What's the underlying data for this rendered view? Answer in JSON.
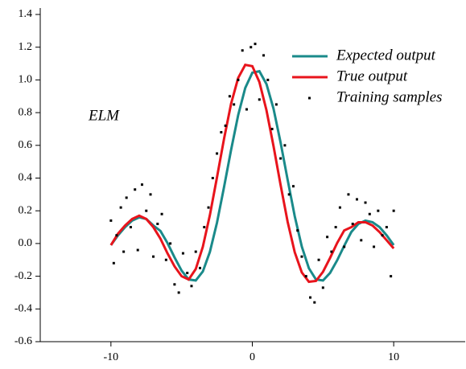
{
  "chart_data": {
    "type": "line",
    "annotation": "ELM",
    "annotation_color": "#1a8a8a",
    "x": [
      -10,
      -9.5,
      -9,
      -8.5,
      -8,
      -7.5,
      -7,
      -6.5,
      -6,
      -5.5,
      -5,
      -4.5,
      -4,
      -3.5,
      -3,
      -2.5,
      -2,
      -1.5,
      -1,
      -0.5,
      0,
      0.5,
      1,
      1.5,
      2,
      2.5,
      3,
      3.5,
      4,
      4.5,
      5,
      5.5,
      6,
      6.5,
      7,
      7.5,
      8,
      8.5,
      9,
      9.5,
      10
    ],
    "series": [
      {
        "name": "Expected output",
        "type": "line",
        "color": "#1a8a8a",
        "values": [
          -0.01,
          0.05,
          0.1,
          0.14,
          0.16,
          0.15,
          0.11,
          0.077,
          0.003,
          -0.085,
          -0.166,
          -0.22,
          -0.226,
          -0.171,
          -0.051,
          0.127,
          0.345,
          0.573,
          0.785,
          0.951,
          1.044,
          1.053,
          0.975,
          0.824,
          0.617,
          0.389,
          0.167,
          -0.019,
          -0.151,
          -0.22,
          -0.226,
          -0.18,
          -0.103,
          -0.014,
          0.07,
          0.12,
          0.14,
          0.13,
          0.1,
          0.05,
          -0.01
        ]
      },
      {
        "name": "True output",
        "type": "line",
        "color": "#e8141c",
        "values": [
          -0.01,
          0.06,
          0.11,
          0.15,
          0.17,
          0.15,
          0.1,
          0.03,
          -0.06,
          -0.14,
          -0.2,
          -0.22,
          -0.156,
          -0.02,
          0.174,
          0.404,
          0.64,
          0.855,
          1.012,
          1.092,
          1.084,
          0.987,
          0.815,
          0.595,
          0.358,
          0.132,
          -0.053,
          -0.177,
          -0.234,
          -0.229,
          -0.173,
          -0.088,
          0.003,
          0.08,
          0.1,
          0.13,
          0.13,
          0.11,
          0.07,
          0.02,
          -0.03
        ]
      },
      {
        "name": "Training samples",
        "type": "scatter",
        "color": "#000000",
        "x": [
          -10,
          -9.8,
          -9.6,
          -9.3,
          -9.1,
          -8.9,
          -8.6,
          -8.3,
          -8.1,
          -7.8,
          -7.5,
          -7.2,
          -7,
          -6.7,
          -6.4,
          -6.1,
          -5.8,
          -5.5,
          -5.2,
          -4.9,
          -4.6,
          -4.3,
          -4,
          -3.7,
          -3.4,
          -3.1,
          -2.8,
          -2.5,
          -2.2,
          -1.9,
          -1.6,
          -1.3,
          -1,
          -0.7,
          -0.4,
          -0.1,
          0.2,
          0.5,
          0.8,
          1.1,
          1.4,
          1.7,
          2,
          2.3,
          2.6,
          2.9,
          3.2,
          3.5,
          3.8,
          4.1,
          4.4,
          4.7,
          5,
          5.3,
          5.6,
          5.9,
          6.2,
          6.5,
          6.8,
          7.1,
          7.4,
          7.7,
          8,
          8.3,
          8.6,
          8.9,
          9.2,
          9.5,
          9.8,
          10
        ],
        "values": [
          0.14,
          -0.12,
          0.05,
          0.22,
          -0.05,
          0.28,
          0.1,
          0.33,
          -0.04,
          0.36,
          0.2,
          0.3,
          -0.08,
          0.12,
          0.18,
          -0.1,
          0.0,
          -0.25,
          -0.3,
          -0.06,
          -0.18,
          -0.26,
          -0.05,
          -0.15,
          0.1,
          0.22,
          0.4,
          0.55,
          0.68,
          0.72,
          0.9,
          0.85,
          1.0,
          1.18,
          0.82,
          1.2,
          1.22,
          0.88,
          1.15,
          1.0,
          0.7,
          0.85,
          0.52,
          0.6,
          0.3,
          0.35,
          0.08,
          -0.08,
          -0.2,
          -0.33,
          -0.36,
          -0.1,
          -0.27,
          0.04,
          -0.05,
          0.1,
          0.22,
          -0.02,
          0.3,
          0.12,
          0.27,
          0.02,
          0.25,
          0.18,
          -0.02,
          0.2,
          0.05,
          0.1,
          -0.2,
          0.2
        ]
      }
    ],
    "xlim": [
      -15,
      15
    ],
    "xticks": [
      -10,
      0,
      10
    ],
    "ylim": [
      -0.6,
      1.4
    ],
    "yticks": [
      -0.6,
      -0.4,
      -0.2,
      {
        "value": 0,
        "label": "0.0"
      },
      0.2,
      0.4,
      0.6,
      0.8,
      {
        "value": 1,
        "label": "1.0"
      },
      1.2,
      1.4
    ],
    "grid": false,
    "legend": "upper right"
  }
}
